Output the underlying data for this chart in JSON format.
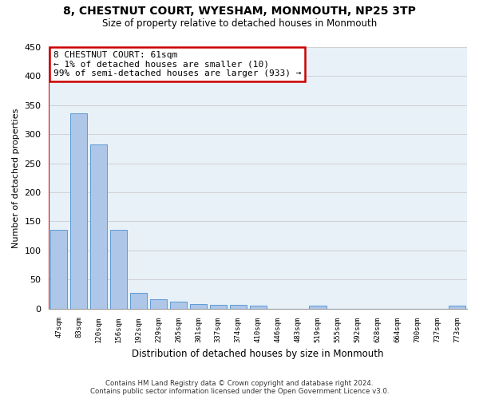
{
  "title": "8, CHESTNUT COURT, WYESHAM, MONMOUTH, NP25 3TP",
  "subtitle": "Size of property relative to detached houses in Monmouth",
  "xlabel": "Distribution of detached houses by size in Monmouth",
  "ylabel": "Number of detached properties",
  "categories": [
    "47sqm",
    "83sqm",
    "120sqm",
    "156sqm",
    "192sqm",
    "229sqm",
    "265sqm",
    "301sqm",
    "337sqm",
    "374sqm",
    "410sqm",
    "446sqm",
    "483sqm",
    "519sqm",
    "555sqm",
    "592sqm",
    "628sqm",
    "664sqm",
    "700sqm",
    "737sqm",
    "773sqm"
  ],
  "values": [
    136,
    336,
    282,
    135,
    27,
    16,
    12,
    8,
    7,
    6,
    5,
    0,
    0,
    5,
    0,
    0,
    0,
    0,
    0,
    0,
    5
  ],
  "bar_color": "#aec6e8",
  "bar_edge_color": "#5b9bd5",
  "ylim": [
    0,
    450
  ],
  "yticks": [
    0,
    50,
    100,
    150,
    200,
    250,
    300,
    350,
    400,
    450
  ],
  "annotation_text": "8 CHESTNUT COURT: 61sqm\n← 1% of detached houses are smaller (10)\n99% of semi-detached houses are larger (933) →",
  "annotation_box_color": "#ffffff",
  "annotation_box_edge_color": "#cc0000",
  "vline_color": "#cc0000",
  "background_color": "#e8f0f8",
  "footer_line1": "Contains HM Land Registry data © Crown copyright and database right 2024.",
  "footer_line2": "Contains public sector information licensed under the Open Government Licence v3.0."
}
